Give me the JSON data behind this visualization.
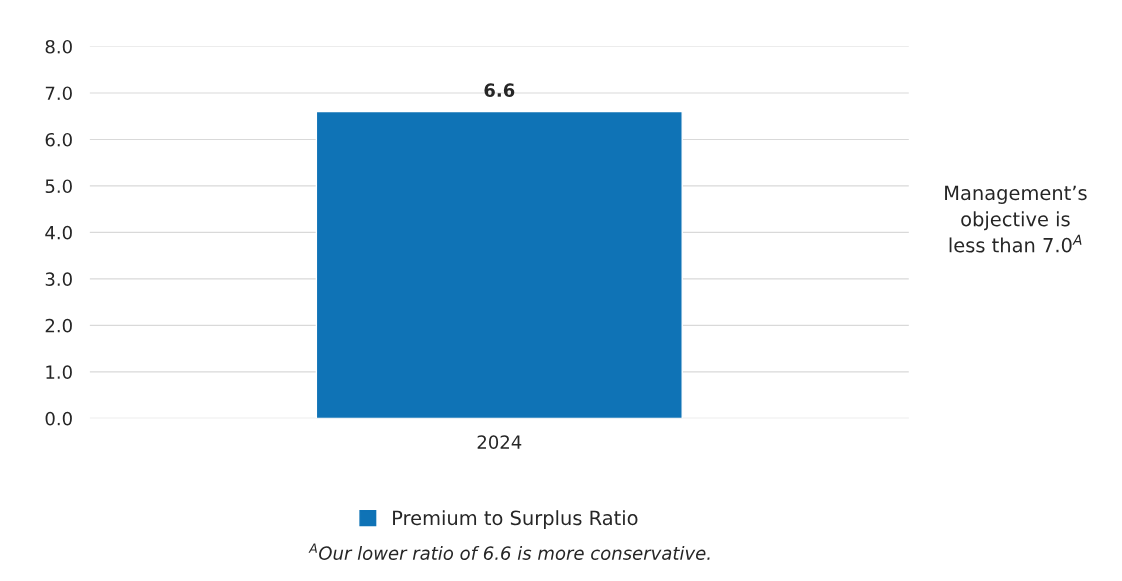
{
  "chart_data": {
    "type": "bar",
    "categories": [
      "2024"
    ],
    "series": [
      {
        "name": "Premium to Surplus Ratio",
        "color": "#0f73b6",
        "values": [
          6.6
        ]
      }
    ],
    "ylim": [
      0,
      8
    ],
    "yticks": [
      {
        "value": 0,
        "label": "0.0"
      },
      {
        "value": 1,
        "label": "1.0"
      },
      {
        "value": 2,
        "label": "2.0"
      },
      {
        "value": 3,
        "label": "3.0"
      },
      {
        "value": 4,
        "label": "4.0"
      },
      {
        "value": 5,
        "label": "5.0"
      },
      {
        "value": 6,
        "label": "6.0"
      },
      {
        "value": 7,
        "label": "7.0"
      },
      {
        "value": 8,
        "label": "8.0"
      }
    ],
    "grid": "y",
    "data_labels": true,
    "legend": "bottom",
    "annotations": [
      "Management’s\nobjective is\nless than 7.0$^{A}$",
      "$^{A}$Our lower ratio of 6.6 is more conservative."
    ]
  }
}
